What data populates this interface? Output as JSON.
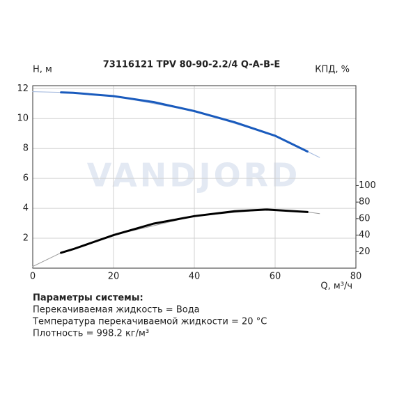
{
  "chart_data": {
    "type": "line",
    "title": "73116121 TPV 80-90-2.2/4 Q-A-B-E",
    "ylabel": "Н, м",
    "y2label": "КПД, %",
    "xlabel": "Q, м³/ч",
    "watermark": "VANDJORD",
    "xlim": [
      0,
      80
    ],
    "xticks": [
      0,
      20,
      40,
      60,
      80
    ],
    "ylim": [
      0,
      12.2
    ],
    "yticks": [
      2,
      4,
      6,
      8,
      10,
      12
    ],
    "y2lim": [
      0,
      221
    ],
    "y2ticks": [
      20,
      40,
      60,
      80,
      100
    ],
    "grid": true,
    "series": [
      {
        "color": "#9db4dc",
        "line_width": 1,
        "x": [
          0,
          7,
          20,
          40,
          60,
          68,
          71
        ],
        "values": [
          11.8,
          11.75,
          11.5,
          10.5,
          8.85,
          7.8,
          7.4
        ]
      },
      {
        "color": "#1a5bbd",
        "line_width": 3,
        "x": [
          7,
          10,
          20,
          30,
          40,
          50,
          60,
          68
        ],
        "values": [
          11.75,
          11.72,
          11.5,
          11.1,
          10.5,
          9.75,
          8.85,
          7.8
        ]
      },
      {
        "color": "#999999",
        "line_width": 1,
        "axis": "y2",
        "x": [
          0,
          7,
          20,
          40,
          58,
          68,
          71
        ],
        "values": [
          2,
          18.6,
          40,
          63,
          71,
          68,
          66
        ]
      },
      {
        "color": "#000000",
        "line_width": 3,
        "axis": "y2",
        "x": [
          7,
          10,
          20,
          30,
          40,
          50,
          58,
          68
        ],
        "values": [
          18.6,
          23,
          40,
          54,
          63,
          69,
          71,
          68
        ]
      }
    ],
    "parameters_title": "Параметры системы:",
    "parameters": [
      "Перекачиваемая жидкость = Вода",
      "Температура перекачиваемой жидкости = 20 °C",
      "Плотность = 998.2 кг/м³"
    ]
  }
}
